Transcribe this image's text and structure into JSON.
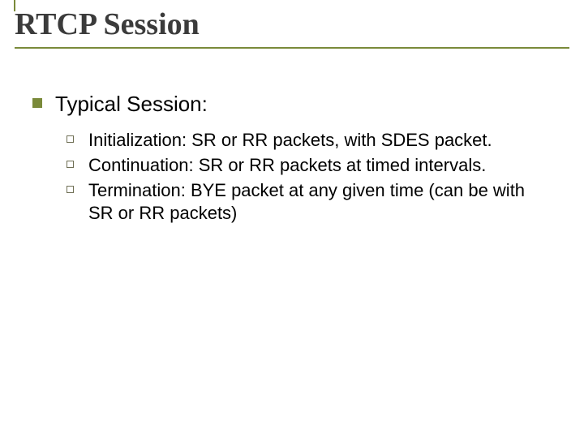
{
  "colors": {
    "title_text": "#3b3b3b",
    "rule": "#7a8a3a",
    "bullet_square_fill": "#7a8a3a",
    "bullet_outline": "#6f6f55",
    "body_text": "#000000",
    "background": "#ffffff"
  },
  "fonts": {
    "title_family": "Times New Roman, Times, serif",
    "title_size_pt": 28,
    "body_family": "Arial, Helvetica, sans-serif",
    "lvl1_size_pt": 20,
    "lvl2_size_pt": 17
  },
  "slide": {
    "title": "RTCP Session",
    "level1": {
      "text": "Typical Session:"
    },
    "level2": [
      {
        "text": "Initialization: SR or RR packets, with SDES packet."
      },
      {
        "text": "Continuation: SR or RR packets at timed intervals."
      },
      {
        "text": "Termination: BYE packet at any given time (can be with SR or RR packets)"
      }
    ]
  }
}
